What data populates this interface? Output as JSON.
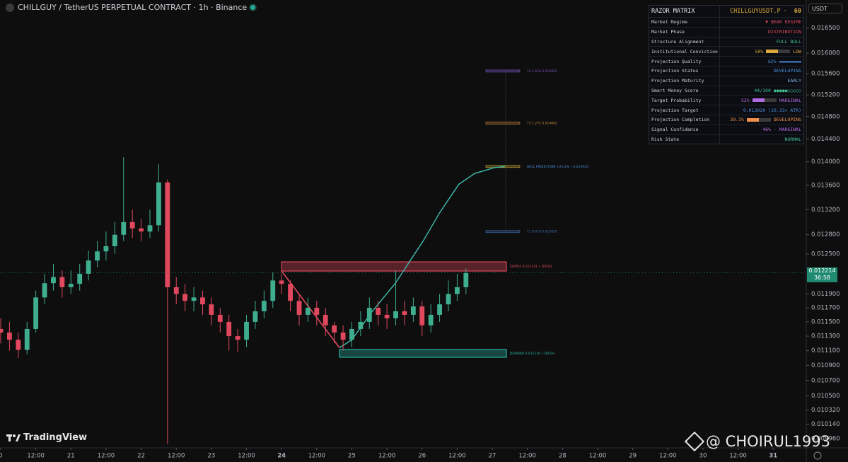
{
  "header": {
    "title": "CHILLGUY / TetherUS PERPETUAL CONTRACT · 1h · Binance",
    "currency": "USDT"
  },
  "chart_data": {
    "type": "candlestick",
    "log_scale": true,
    "up_color": "#3fae8f",
    "down_color": "#e0485e",
    "x": [
      0,
      3,
      6,
      9,
      12,
      15,
      18,
      21,
      24,
      27,
      30,
      33,
      36,
      39,
      42,
      45,
      48,
      51,
      54,
      57,
      60,
      63,
      66,
      69,
      72,
      75,
      78,
      81,
      84,
      87,
      90,
      93,
      96,
      99,
      102,
      105,
      108,
      111,
      114,
      117,
      120,
      123,
      126,
      129,
      132,
      135,
      138,
      141,
      144,
      147,
      150,
      153,
      156,
      159
    ],
    "open": [
      0.0114,
      0.01135,
      0.01125,
      0.01111,
      0.0114,
      0.01185,
      0.01206,
      0.01215,
      0.012,
      0.01205,
      0.0122,
      0.0124,
      0.01254,
      0.01262,
      0.0128,
      0.013,
      0.0129,
      0.01285,
      0.01295,
      0.01365,
      0.012,
      0.0119,
      0.0118,
      0.01185,
      0.01175,
      0.0116,
      0.0115,
      0.0113,
      0.01125,
      0.0115,
      0.01165,
      0.0118,
      0.0121,
      0.01205,
      0.0118,
      0.0116,
      0.0117,
      0.0116,
      0.01145,
      0.01135,
      0.01125,
      0.0114,
      0.0115,
      0.0117,
      0.0116,
      0.01155,
      0.01165,
      0.0116,
      0.01172,
      0.01145,
      0.0116,
      0.01175,
      0.0119,
      0.012
    ],
    "high": [
      0.01155,
      0.0115,
      0.01135,
      0.0115,
      0.01195,
      0.0122,
      0.01235,
      0.01225,
      0.01225,
      0.01235,
      0.01255,
      0.0127,
      0.01285,
      0.013,
      0.01408,
      0.0132,
      0.01305,
      0.0132,
      0.01396,
      0.0137,
      0.01215,
      0.01205,
      0.012,
      0.01195,
      0.01185,
      0.0117,
      0.0116,
      0.0114,
      0.0116,
      0.0118,
      0.01195,
      0.01222,
      0.0122,
      0.0121,
      0.0119,
      0.01185,
      0.0118,
      0.0117,
      0.0115,
      0.01145,
      0.0115,
      0.01165,
      0.01185,
      0.0118,
      0.01175,
      0.01225,
      0.0118,
      0.01185,
      0.0118,
      0.01175,
      0.0119,
      0.0121,
      0.0122,
      0.01228
    ],
    "low": [
      0.0112,
      0.0111,
      0.011,
      0.01105,
      0.01135,
      0.01175,
      0.01195,
      0.01185,
      0.0119,
      0.01195,
      0.0121,
      0.0123,
      0.0124,
      0.0125,
      0.0127,
      0.01275,
      0.0127,
      0.01275,
      0.01285,
      0.0099,
      0.01175,
      0.01165,
      0.01165,
      0.0116,
      0.01145,
      0.01135,
      0.0111,
      0.01108,
      0.01115,
      0.0114,
      0.01155,
      0.0117,
      0.0119,
      0.01165,
      0.01145,
      0.0115,
      0.01145,
      0.0113,
      0.0112,
      0.0111,
      0.01115,
      0.0113,
      0.0114,
      0.01145,
      0.0114,
      0.01145,
      0.01145,
      0.0115,
      0.0113,
      0.01135,
      0.0115,
      0.01165,
      0.0118,
      0.0119
    ],
    "close": [
      0.01135,
      0.01125,
      0.01111,
      0.0114,
      0.01185,
      0.01206,
      0.01215,
      0.012,
      0.01205,
      0.0122,
      0.0124,
      0.01254,
      0.01262,
      0.0128,
      0.013,
      0.0129,
      0.01285,
      0.01295,
      0.01365,
      0.012,
      0.0119,
      0.0118,
      0.01185,
      0.01175,
      0.0116,
      0.0115,
      0.0113,
      0.01125,
      0.0115,
      0.01165,
      0.0118,
      0.0121,
      0.01205,
      0.0118,
      0.0116,
      0.0117,
      0.0116,
      0.01145,
      0.01135,
      0.01125,
      0.0114,
      0.0115,
      0.0117,
      0.0116,
      0.01155,
      0.01165,
      0.0116,
      0.01172,
      0.01145,
      0.0116,
      0.01175,
      0.0119,
      0.012,
      0.01221
    ],
    "xlim": [
      -0.24,
      275.3
    ],
    "ylim": [
      0.00985,
      0.01708
    ],
    "xticks": [
      0,
      {
        "value": 12,
        "label": "12:00"
      },
      {
        "value": 24,
        "label": "21"
      },
      {
        "value": 36,
        "label": "12:00"
      },
      {
        "value": 48,
        "label": "22"
      },
      {
        "value": 60,
        "label": "12:00"
      },
      {
        "value": 72,
        "label": "23"
      },
      {
        "value": 84,
        "label": "12:00"
      },
      {
        "value": 96,
        "label": "24"
      },
      {
        "value": 108,
        "label": "12:00"
      },
      {
        "value": 120,
        "label": "25"
      },
      {
        "value": 132,
        "label": "12:00"
      },
      {
        "value": 144,
        "label": "26"
      },
      {
        "value": 156,
        "label": "12:00"
      },
      {
        "value": 168,
        "label": "27"
      },
      {
        "value": 180,
        "label": "12:00"
      },
      {
        "value": 192,
        "label": "28"
      },
      {
        "value": 204,
        "label": "12:00"
      },
      {
        "value": 216,
        "label": "29"
      },
      {
        "value": 228,
        "label": "12:00"
      },
      {
        "value": 240,
        "label": "30"
      },
      {
        "value": 252,
        "label": "12:00"
      },
      {
        "value": 264,
        "label": "31"
      }
    ],
    "yticks": [
      {
        "value": 0.0165,
        "label": "0.016500"
      },
      {
        "value": 0.016,
        "label": "0.016000"
      },
      {
        "value": 0.0156,
        "label": "0.015600"
      },
      {
        "value": 0.0152,
        "label": "0.015200"
      },
      {
        "value": 0.0148,
        "label": "0.014800"
      },
      {
        "value": 0.0144,
        "label": "0.014400"
      },
      {
        "value": 0.014,
        "label": "0.014000"
      },
      {
        "value": 0.0136,
        "label": "0.013600"
      },
      {
        "value": 0.0132,
        "label": "0.013200"
      },
      {
        "value": 0.0128,
        "label": "0.012800"
      },
      {
        "value": 0.0125,
        "label": "0.012500"
      },
      {
        "value": 0.0119,
        "label": "0.011900"
      },
      {
        "value": 0.0117,
        "label": "0.011700"
      },
      {
        "value": 0.0115,
        "label": "0.011500"
      },
      {
        "value": 0.0113,
        "label": "0.011300"
      },
      {
        "value": 0.0111,
        "label": "0.011100"
      },
      {
        "value": 0.0109,
        "label": "0.010900"
      },
      {
        "value": 0.0107,
        "label": "0.010700"
      },
      {
        "value": 0.0105,
        "label": "0.010500"
      },
      {
        "value": 0.01032,
        "label": "0.010320"
      },
      {
        "value": 0.01014,
        "label": "0.010140"
      },
      {
        "value": 0.00996,
        "label": "0.009960"
      }
    ],
    "levels": [
      {
        "label": "T4 1.618 0.015652",
        "value": 0.015652,
        "color": "#7e57c2"
      },
      {
        "label": "T3 1.272 0.014682",
        "value": 0.014682,
        "color": "#c98a3a"
      },
      {
        "label": "BULL PROJECTION +25.2% • 0.013920",
        "value": 0.01392,
        "color": "#c9b03a"
      },
      {
        "label": "T1 0.618 0.012850",
        "value": 0.01285,
        "color": "#3f6fb0"
      }
    ],
    "level_span": [
      165.8,
      177.4
    ],
    "zones": [
      {
        "label": "SUPPLY 0.012241 • FRESH",
        "top": 0.01238,
        "bottom": 0.012241,
        "start": 96,
        "end": 172.8,
        "color": "#e0485e"
      },
      {
        "label": "DEMAND 0.011116 • FRESH",
        "top": 0.011116,
        "bottom": 0.01101,
        "start": 115.8,
        "end": 172.8,
        "color": "#2bb3a3"
      }
    ],
    "swing_line": {
      "x": [
        96,
        115.8
      ],
      "values": [
        0.012241,
        0.01114
      ],
      "color": "#e0485e"
    },
    "projection": {
      "x": [
        115.8,
        120,
        127,
        134.9,
        144.5,
        150,
        156.6,
        162,
        168.7,
        172.3
      ],
      "values": [
        0.01114,
        0.01125,
        0.01165,
        0.01206,
        0.01271,
        0.01315,
        0.01362,
        0.0138,
        0.0139,
        0.01392
      ],
      "color": "#3fbfae"
    },
    "last_price": {
      "value": 0.012214,
      "countdown": "36:58",
      "color": "#1f8a70"
    }
  },
  "matrix": {
    "title": "RAZOR MATRIX",
    "symbol": "CHILLGUYUSDT.P",
    "separator": "·",
    "timeframe": "60",
    "rows": [
      {
        "label": "Market Regime",
        "value": "▼ BEAR REGIME",
        "color": "#e0485e"
      },
      {
        "label": "Market Phase",
        "value": "DISTRIBUTION",
        "color": "#e0485e"
      },
      {
        "label": "Structure Alignment",
        "value": "FULL BULL",
        "color": "#3fbf8f"
      },
      {
        "label": "Institutional Conviction",
        "value": "50%",
        "detail": "LOW",
        "gauge": "#d9a93a",
        "color": "#d9a93a"
      },
      {
        "label": "Projection Quality",
        "value": "62%",
        "detail": "▬▬▬▬▬▬▬▬",
        "color": "#4a8fe0"
      },
      {
        "label": "Projection Status",
        "value": "DEVELOPING",
        "color": "#4a8fe0"
      },
      {
        "label": "Projection Maturity",
        "value": "EARLY",
        "color": "#7fb0e0"
      },
      {
        "label": "Smart Money Score",
        "value": "44/100",
        "detail": "●●●●●○○○○○",
        "color": "#3fbf8f"
      },
      {
        "label": "Target Probability",
        "value": "52%",
        "detail": "MARGINAL",
        "gauge": "#b36ae0",
        "color": "#b36ae0"
      },
      {
        "label": "Projection Target",
        "value": "0.013920 (10.33× ATR)",
        "color": "#4a8fe0"
      },
      {
        "label": "Projection Completion",
        "value": "39.1%",
        "detail": "DEVELOPING",
        "gauge": "#f0904a",
        "color": "#f0904a"
      },
      {
        "label": "Signal Confidence",
        "value": "46% · MARGINAL",
        "color": "#b36ae0"
      },
      {
        "label": "Risk State",
        "value": "NORMAL",
        "color": "#3fbf8f"
      }
    ]
  },
  "branding": "TradingView",
  "watermark": "@ CHOIRUL1993"
}
